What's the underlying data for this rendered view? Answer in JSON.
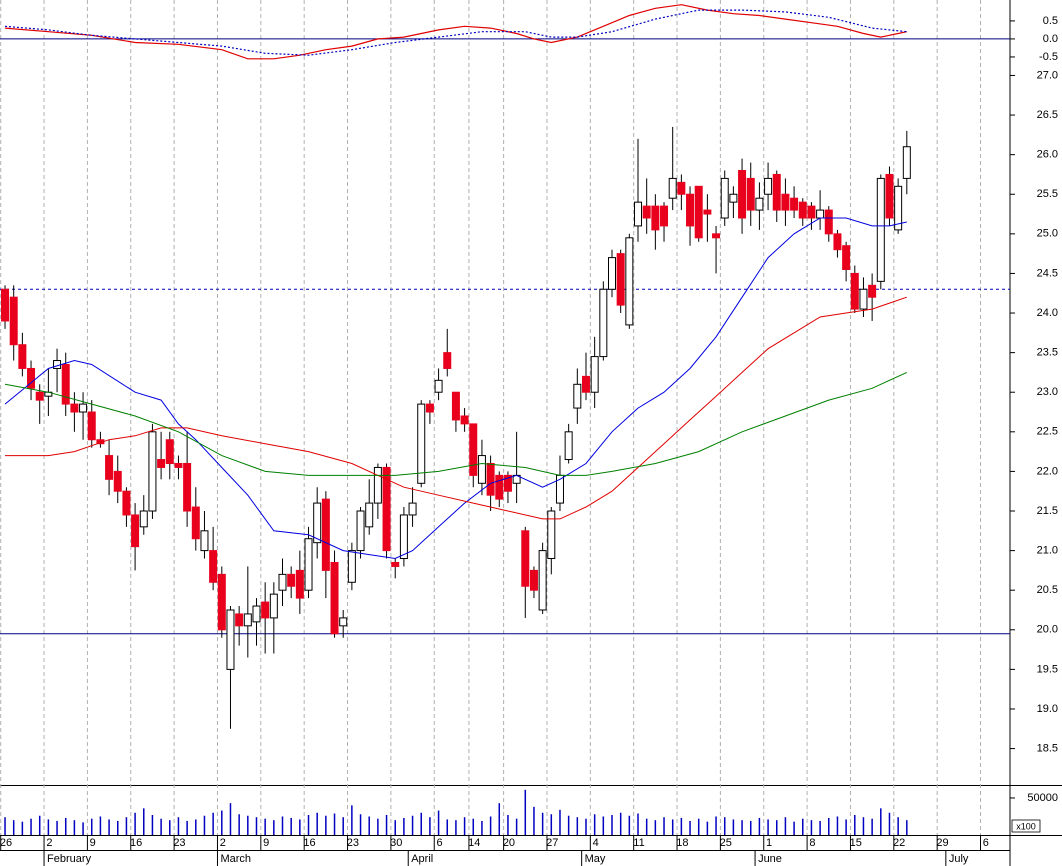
{
  "chart_data": [
    {
      "type": "line",
      "ylim": [
        -0.64,
        1.08
      ],
      "yticks": [
        {
          "value": 0.5,
          "label": "0.5"
        },
        {
          "value": 0,
          "label": "0.0"
        },
        {
          "value": -0.5,
          "label": "-0.5"
        }
      ],
      "hlines": [
        {
          "value": 0,
          "color": "#000080",
          "dash": false
        }
      ],
      "series": [
        {
          "color": "#e00000",
          "dash": false,
          "x": [
            0,
            5,
            10,
            15,
            20,
            25,
            28,
            31,
            34,
            37,
            40,
            43,
            46,
            50,
            53,
            56,
            59,
            61,
            63,
            66,
            69,
            72,
            75,
            78,
            81,
            84,
            87,
            90,
            93,
            96,
            99,
            101,
            103,
            104
          ],
          "values": [
            0.3,
            0.2,
            0.1,
            -0.1,
            -0.15,
            -0.3,
            -0.55,
            -0.55,
            -0.45,
            -0.3,
            -0.2,
            0.0,
            0.05,
            0.25,
            0.35,
            0.3,
            0.15,
            0.0,
            -0.1,
            0.05,
            0.35,
            0.65,
            0.85,
            0.95,
            0.8,
            0.7,
            0.65,
            0.55,
            0.45,
            0.35,
            0.15,
            0.05,
            0.15,
            0.2
          ]
        },
        {
          "color": "#0000c0",
          "dash": true,
          "x": [
            0,
            5,
            10,
            15,
            20,
            25,
            30,
            35,
            40,
            45,
            50,
            55,
            60,
            63,
            66,
            70,
            75,
            80,
            85,
            90,
            95,
            100,
            104
          ],
          "values": [
            0.35,
            0.25,
            0.1,
            0.0,
            -0.1,
            -0.2,
            -0.4,
            -0.45,
            -0.3,
            -0.1,
            0.05,
            0.2,
            0.2,
            0.05,
            0.05,
            0.2,
            0.55,
            0.8,
            0.8,
            0.75,
            0.6,
            0.3,
            0.2
          ]
        }
      ]
    },
    {
      "type": "candlestick",
      "ylim": [
        18.04,
        27.17
      ],
      "yticks": [
        {
          "value": 18.5,
          "label": "18.5"
        },
        {
          "value": 19,
          "label": "19.0"
        },
        {
          "value": 19.5,
          "label": "19.5"
        },
        {
          "value": 20,
          "label": "20.0"
        },
        {
          "value": 20.5,
          "label": "20.5"
        },
        {
          "value": 21,
          "label": "21.0"
        },
        {
          "value": 21.5,
          "label": "21.5"
        },
        {
          "value": 22,
          "label": "22.0"
        },
        {
          "value": 22.5,
          "label": "22.5"
        },
        {
          "value": 23,
          "label": "23.0"
        },
        {
          "value": 23.5,
          "label": "23.5"
        },
        {
          "value": 24,
          "label": "24.0"
        },
        {
          "value": 24.5,
          "label": "24.5"
        },
        {
          "value": 25,
          "label": "25.0"
        },
        {
          "value": 25.5,
          "label": "25.5"
        },
        {
          "value": 26,
          "label": "26.0"
        },
        {
          "value": 26.5,
          "label": "26.5"
        },
        {
          "value": 27,
          "label": "27.0"
        }
      ],
      "up_color": "#ffffff",
      "down_color": "#e8001c",
      "open": [
        24.3,
        24.2,
        23.6,
        23.3,
        23.0,
        22.95,
        23.3,
        23.35,
        22.85,
        22.75,
        22.75,
        22.4,
        22.2,
        22.0,
        21.75,
        21.45,
        21.3,
        21.5,
        22.15,
        22.4,
        22.1,
        22.1,
        21.55,
        21.0,
        21.0,
        20.7,
        19.5,
        20.2,
        20.05,
        20.1,
        20.35,
        20.15,
        20.5,
        20.7,
        20.75,
        20.5,
        21.1,
        21.65,
        20.85,
        20.05,
        20.6,
        21.0,
        21.3,
        21.6,
        22.05,
        20.85,
        20.9,
        21.45,
        21.85,
        22.85,
        23.0,
        23.5,
        23.0,
        22.7,
        22.6,
        21.85,
        22.1,
        21.95,
        21.95,
        21.85,
        21.25,
        20.75,
        20.25,
        20.9,
        21.6,
        22.15,
        22.8,
        23.2,
        23.0,
        23.45,
        24.3,
        24.75,
        23.85,
        25.1,
        25.35,
        25.35,
        25.35,
        25.45,
        25.65,
        25.5,
        25.6,
        25.3,
        25.0,
        25.2,
        25.4,
        25.8,
        25.7,
        25.3,
        25.5,
        25.75,
        25.5,
        25.45,
        25.4,
        25.35,
        25.2,
        25.3,
        25.0,
        24.85,
        24.5,
        24.05,
        24.35,
        24.4,
        25.75,
        25.05,
        25.7
      ],
      "high": [
        24.35,
        24.35,
        23.75,
        23.4,
        23.1,
        23.3,
        23.55,
        23.5,
        23.0,
        23.0,
        22.9,
        22.5,
        22.4,
        22.2,
        21.8,
        21.6,
        21.7,
        22.6,
        22.5,
        22.5,
        22.2,
        22.5,
        21.8,
        21.5,
        21.3,
        20.8,
        20.3,
        20.3,
        20.8,
        20.4,
        20.6,
        20.6,
        20.9,
        20.8,
        21.0,
        21.3,
        21.8,
        21.75,
        21.0,
        20.25,
        21.1,
        21.55,
        21.9,
        22.1,
        22.1,
        20.9,
        21.55,
        21.8,
        22.9,
        22.9,
        23.3,
        23.8,
        23.0,
        22.8,
        22.6,
        22.4,
        22.2,
        22.0,
        22.0,
        22.5,
        21.3,
        20.8,
        21.1,
        21.55,
        22.2,
        22.6,
        23.3,
        23.5,
        23.7,
        24.4,
        24.8,
        24.8,
        25.0,
        26.2,
        25.7,
        25.5,
        25.4,
        26.35,
        25.75,
        25.6,
        25.6,
        25.5,
        25.1,
        25.8,
        25.6,
        25.95,
        25.9,
        25.65,
        25.9,
        25.8,
        25.7,
        25.6,
        25.45,
        25.4,
        25.55,
        25.35,
        25.05,
        24.9,
        24.6,
        24.45,
        24.5,
        25.75,
        25.85,
        25.7,
        26.3
      ],
      "low": [
        23.8,
        23.4,
        23.2,
        22.9,
        22.6,
        22.7,
        23.0,
        22.7,
        22.5,
        22.4,
        22.3,
        22.3,
        21.7,
        21.6,
        21.3,
        20.75,
        21.2,
        21.4,
        21.9,
        21.9,
        21.9,
        21.3,
        21.0,
        20.9,
        20.5,
        19.9,
        18.75,
        19.8,
        19.65,
        19.8,
        19.7,
        19.7,
        20.3,
        20.4,
        20.2,
        20.4,
        20.9,
        20.4,
        19.9,
        19.9,
        20.5,
        20.9,
        21.2,
        21.4,
        20.9,
        20.65,
        20.8,
        21.3,
        21.8,
        22.6,
        22.9,
        23.2,
        22.5,
        22.5,
        21.8,
        21.7,
        21.5,
        21.55,
        21.6,
        21.6,
        20.15,
        20.4,
        20.2,
        20.7,
        21.5,
        22.1,
        22.6,
        22.9,
        22.8,
        23.4,
        24.2,
        24.0,
        23.8,
        24.9,
        25.0,
        24.8,
        24.9,
        25.3,
        25.3,
        24.85,
        24.9,
        24.9,
        24.5,
        25.1,
        25.2,
        25.0,
        25.1,
        25.05,
        25.3,
        25.15,
        25.1,
        25.2,
        25.1,
        25.05,
        25.05,
        24.9,
        24.7,
        24.4,
        24.0,
        23.95,
        23.9,
        24.3,
        25.1,
        25.0,
        25.5
      ],
      "close": [
        23.9,
        23.6,
        23.3,
        23.05,
        22.9,
        23.0,
        23.4,
        22.85,
        22.75,
        22.85,
        22.4,
        22.35,
        21.9,
        21.75,
        21.45,
        21.05,
        21.5,
        22.5,
        22.05,
        22.1,
        22.05,
        21.5,
        21.15,
        21.25,
        20.6,
        20.0,
        20.25,
        20.05,
        20.2,
        20.3,
        20.15,
        20.45,
        20.7,
        20.55,
        20.4,
        21.15,
        21.6,
        20.75,
        19.95,
        20.15,
        21.0,
        21.5,
        21.6,
        22.05,
        21.0,
        20.8,
        21.45,
        21.6,
        22.85,
        22.75,
        23.15,
        23.3,
        22.65,
        22.6,
        21.95,
        22.2,
        21.7,
        21.65,
        21.75,
        21.95,
        20.55,
        20.5,
        21.0,
        21.5,
        21.95,
        22.5,
        23.1,
        23.0,
        23.45,
        24.3,
        24.7,
        24.1,
        24.95,
        25.4,
        25.2,
        25.05,
        25.1,
        25.7,
        25.5,
        25.1,
        24.95,
        25.25,
        24.95,
        25.7,
        25.5,
        25.2,
        25.3,
        25.45,
        25.7,
        25.3,
        25.3,
        25.3,
        25.2,
        25.2,
        25.3,
        25.0,
        24.8,
        24.55,
        24.05,
        24.3,
        24.2,
        25.7,
        25.2,
        25.6,
        26.1
      ],
      "lines": [
        {
          "color": "#0000e0",
          "x": [
            0,
            5,
            8,
            10,
            15,
            18,
            20,
            22,
            25,
            28,
            31,
            35,
            39,
            42,
            45,
            47,
            50,
            53,
            56,
            59,
            62,
            64,
            67,
            70,
            73,
            76,
            79,
            82,
            85,
            88,
            91,
            94,
            97,
            100,
            102,
            104
          ],
          "values": [
            22.85,
            23.3,
            23.4,
            23.35,
            23.0,
            22.9,
            22.6,
            22.4,
            22.05,
            21.7,
            21.25,
            21.2,
            21.0,
            20.95,
            20.9,
            21.0,
            21.3,
            21.6,
            21.85,
            21.95,
            21.8,
            21.9,
            22.1,
            22.5,
            22.8,
            23.0,
            23.3,
            23.7,
            24.2,
            24.7,
            25.0,
            25.2,
            25.2,
            25.1,
            25.1,
            25.15
          ]
        },
        {
          "color": "#e00000",
          "x": [
            0,
            5,
            8,
            12,
            15,
            18,
            21,
            25,
            30,
            35,
            40,
            43,
            46,
            50,
            54,
            58,
            62,
            64,
            67,
            70,
            73,
            76,
            79,
            82,
            85,
            88,
            91,
            94,
            97,
            100,
            104
          ],
          "values": [
            22.2,
            22.2,
            22.25,
            22.4,
            22.45,
            22.55,
            22.55,
            22.45,
            22.35,
            22.25,
            22.1,
            21.95,
            21.8,
            21.7,
            21.6,
            21.5,
            21.4,
            21.4,
            21.55,
            21.75,
            22.05,
            22.35,
            22.65,
            22.95,
            23.25,
            23.55,
            23.75,
            23.95,
            24.0,
            24.05,
            24.2
          ]
        },
        {
          "color": "#008000",
          "x": [
            0,
            5,
            10,
            15,
            20,
            25,
            30,
            35,
            40,
            45,
            50,
            55,
            60,
            64,
            67,
            70,
            75,
            80,
            85,
            90,
            95,
            100,
            104
          ],
          "values": [
            23.1,
            23.0,
            22.85,
            22.7,
            22.5,
            22.2,
            22.0,
            21.95,
            21.95,
            21.95,
            22.0,
            22.1,
            22.05,
            21.95,
            21.95,
            22.0,
            22.1,
            22.25,
            22.5,
            22.7,
            22.9,
            23.05,
            23.25
          ]
        }
      ],
      "hlines": [
        {
          "value": 24.3,
          "color": "#0000c0",
          "dash": true
        },
        {
          "value": 19.95,
          "color": "#000080",
          "dash": false
        }
      ]
    },
    {
      "type": "bar",
      "color": "#0000c0",
      "ylim": [
        0,
        67500
      ],
      "yticks": [
        50000
      ],
      "unit_label": "x100",
      "values": [
        24000,
        20000,
        18000,
        22000,
        26000,
        21000,
        19000,
        23000,
        20000,
        17000,
        22000,
        25000,
        21000,
        19000,
        24000,
        30000,
        36000,
        27000,
        22000,
        20000,
        24000,
        19000,
        21000,
        26000,
        30000,
        33000,
        43000,
        28000,
        26000,
        24000,
        22000,
        20000,
        25000,
        23000,
        21000,
        27000,
        30000,
        26000,
        29000,
        24000,
        40000,
        28000,
        25000,
        22000,
        27000,
        20000,
        23000,
        26000,
        30000,
        24000,
        33000,
        21000,
        20000,
        24000,
        22000,
        19000,
        25000,
        43000,
        27000,
        22000,
        61000,
        38000,
        30000,
        28000,
        34000,
        26000,
        24000,
        22000,
        28000,
        25000,
        27000,
        30000,
        26000,
        29000,
        22000,
        20000,
        24000,
        21000,
        23000,
        19000,
        22000,
        18000,
        25000,
        24000,
        21000,
        20000,
        19000,
        23000,
        21000,
        20000,
        24000,
        18000,
        22000,
        20000,
        19000,
        23000,
        25000,
        21000,
        27000,
        24000,
        22000,
        36000,
        30000,
        24000,
        20000
      ],
      "xlim": [
        -0.58,
        115.9
      ],
      "xticks": [
        {
          "value": 0,
          "label": "26"
        },
        {
          "value": 5,
          "label": "2"
        },
        {
          "value": 10,
          "label": "9"
        },
        {
          "value": 15,
          "label": "16"
        },
        {
          "value": 20,
          "label": "23"
        },
        {
          "value": 25,
          "label": "2"
        },
        {
          "value": 30,
          "label": "9"
        },
        {
          "value": 35,
          "label": "16"
        },
        {
          "value": 40,
          "label": "23"
        },
        {
          "value": 45,
          "label": "30"
        },
        {
          "value": 50,
          "label": "6"
        },
        {
          "value": 54,
          "label": "14"
        },
        {
          "value": 58,
          "label": "20"
        },
        {
          "value": 63,
          "label": "27"
        },
        {
          "value": 68,
          "label": "4"
        },
        {
          "value": 73,
          "label": "11"
        },
        {
          "value": 78,
          "label": "18"
        },
        {
          "value": 83,
          "label": "25"
        },
        {
          "value": 88,
          "label": "1"
        },
        {
          "value": 93,
          "label": "8"
        },
        {
          "value": 98,
          "label": "15"
        },
        {
          "value": 103,
          "label": "22"
        },
        {
          "value": 108,
          "label": "29"
        },
        {
          "value": 113,
          "label": "6"
        }
      ],
      "months": [
        {
          "value": 5,
          "label": "February"
        },
        {
          "value": 25,
          "label": "March"
        },
        {
          "value": 47,
          "label": "April"
        },
        {
          "value": 67,
          "label": "May"
        },
        {
          "value": 87,
          "label": "June"
        },
        {
          "value": 109,
          "label": "July"
        }
      ]
    }
  ]
}
